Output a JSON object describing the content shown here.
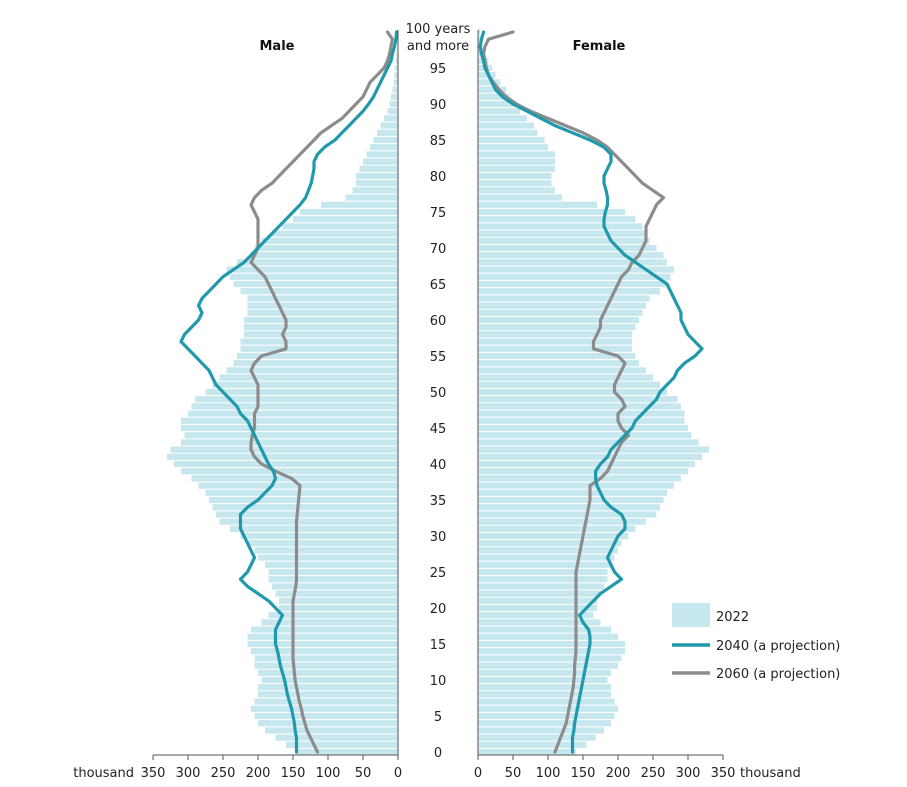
{
  "chart_data": {
    "type": "bar",
    "orientation": "horizontal",
    "layout": "population-pyramid",
    "panels": [
      {
        "name": "Male"
      },
      {
        "name": "Female"
      }
    ],
    "age_label_top": [
      "100 years",
      "and more"
    ],
    "age_ticks": [
      0,
      5,
      10,
      15,
      20,
      25,
      30,
      35,
      40,
      45,
      50,
      55,
      60,
      65,
      70,
      75,
      80,
      85,
      90,
      95
    ],
    "x_ticks": [
      0,
      50,
      100,
      150,
      200,
      250,
      300,
      350
    ],
    "x_unit": "thousand",
    "xlim": [
      0,
      350
    ],
    "ylim": [
      0,
      100
    ],
    "legend": {
      "position": "bottom-right"
    },
    "colors": {
      "bar": "#c7e7ee",
      "line_2040": "#2199ac",
      "line_2060": "#8c8c8c",
      "axis": "#555555"
    },
    "series": [
      {
        "name": "2022",
        "kind": "bar",
        "male": [
          145,
          160,
          175,
          190,
          200,
          205,
          210,
          205,
          200,
          200,
          195,
          200,
          205,
          205,
          210,
          215,
          215,
          210,
          195,
          185,
          170,
          170,
          175,
          180,
          185,
          185,
          190,
          200,
          205,
          215,
          225,
          240,
          255,
          260,
          265,
          270,
          275,
          285,
          295,
          310,
          320,
          330,
          325,
          310,
          305,
          310,
          310,
          300,
          295,
          290,
          275,
          265,
          255,
          245,
          235,
          230,
          225,
          225,
          220,
          220,
          220,
          215,
          215,
          215,
          225,
          235,
          240,
          245,
          230,
          210,
          205,
          195,
          180,
          165,
          150,
          140,
          110,
          75,
          65,
          60,
          60,
          55,
          50,
          45,
          40,
          35,
          30,
          25,
          20,
          15,
          12,
          10,
          8,
          6,
          5,
          4,
          3,
          2,
          1,
          1,
          1
        ],
        "female": [
          140,
          155,
          168,
          180,
          190,
          195,
          200,
          195,
          190,
          190,
          185,
          190,
          200,
          205,
          210,
          210,
          200,
          190,
          175,
          165,
          170,
          170,
          175,
          180,
          185,
          185,
          190,
          195,
          200,
          205,
          215,
          225,
          240,
          255,
          260,
          265,
          270,
          280,
          290,
          300,
          310,
          320,
          330,
          315,
          305,
          300,
          295,
          295,
          290,
          285,
          270,
          260,
          250,
          240,
          230,
          225,
          220,
          220,
          220,
          225,
          230,
          235,
          240,
          245,
          260,
          270,
          275,
          280,
          270,
          265,
          255,
          245,
          240,
          235,
          225,
          210,
          170,
          120,
          110,
          105,
          105,
          110,
          110,
          110,
          100,
          95,
          85,
          80,
          70,
          60,
          55,
          45,
          40,
          32,
          25,
          20,
          15,
          10,
          7,
          5,
          3
        ]
      },
      {
        "name": "2040 (a projection)",
        "kind": "line",
        "male": [
          145,
          145,
          145,
          147,
          148,
          150,
          152,
          155,
          158,
          160,
          162,
          165,
          168,
          170,
          172,
          175,
          175,
          175,
          170,
          165,
          175,
          185,
          200,
          215,
          225,
          215,
          210,
          205,
          210,
          215,
          220,
          225,
          225,
          225,
          215,
          200,
          190,
          180,
          175,
          178,
          185,
          190,
          195,
          200,
          205,
          210,
          215,
          225,
          230,
          240,
          250,
          260,
          265,
          270,
          280,
          290,
          300,
          310,
          305,
          295,
          285,
          280,
          285,
          280,
          270,
          260,
          250,
          235,
          220,
          210,
          200,
          190,
          180,
          170,
          160,
          150,
          140,
          132,
          128,
          124,
          122,
          120,
          120,
          115,
          105,
          90,
          80,
          70,
          60,
          50,
          42,
          35,
          30,
          25,
          20,
          15,
          10,
          8,
          5,
          3,
          2
        ],
        "female": [
          135,
          135,
          135,
          137,
          138,
          140,
          142,
          144,
          146,
          148,
          150,
          152,
          154,
          156,
          158,
          160,
          160,
          158,
          150,
          145,
          155,
          165,
          175,
          190,
          205,
          195,
          190,
          185,
          190,
          195,
          200,
          210,
          210,
          205,
          190,
          180,
          175,
          170,
          168,
          168,
          175,
          185,
          190,
          200,
          210,
          220,
          225,
          235,
          245,
          255,
          260,
          270,
          280,
          285,
          295,
          310,
          320,
          310,
          300,
          295,
          290,
          290,
          285,
          280,
          275,
          270,
          255,
          240,
          225,
          210,
          200,
          190,
          185,
          180,
          180,
          182,
          185,
          185,
          183,
          180,
          180,
          185,
          190,
          190,
          180,
          160,
          135,
          110,
          90,
          70,
          50,
          35,
          25,
          20,
          15,
          10,
          8,
          5,
          3,
          5,
          8
        ]
      },
      {
        "name": "2060 (a projection)",
        "kind": "line",
        "male": [
          115,
          120,
          125,
          130,
          133,
          136,
          138,
          141,
          143,
          145,
          147,
          148,
          149,
          150,
          150,
          150,
          150,
          150,
          150,
          150,
          150,
          150,
          148,
          146,
          145,
          145,
          145,
          145,
          145,
          145,
          145,
          145,
          145,
          144,
          143,
          142,
          141,
          140,
          152,
          175,
          195,
          205,
          210,
          210,
          208,
          205,
          205,
          205,
          200,
          200,
          200,
          200,
          205,
          210,
          205,
          195,
          160,
          160,
          165,
          160,
          160,
          165,
          170,
          175,
          180,
          185,
          190,
          200,
          210,
          205,
          200,
          200,
          200,
          200,
          200,
          205,
          210,
          205,
          195,
          180,
          170,
          160,
          150,
          140,
          130,
          120,
          110,
          95,
          80,
          70,
          60,
          50,
          45,
          40,
          30,
          20,
          15,
          12,
          10,
          8,
          15
        ],
        "female": [
          110,
          114,
          118,
          122,
          126,
          128,
          130,
          132,
          134,
          136,
          137,
          138,
          138,
          139,
          140,
          140,
          140,
          140,
          140,
          140,
          140,
          140,
          140,
          140,
          140,
          140,
          142,
          144,
          146,
          148,
          150,
          152,
          154,
          156,
          158,
          160,
          160,
          160,
          175,
          185,
          190,
          195,
          200,
          205,
          215,
          205,
          200,
          200,
          210,
          205,
          195,
          195,
          200,
          205,
          210,
          200,
          165,
          165,
          170,
          175,
          175,
          180,
          185,
          190,
          195,
          200,
          205,
          215,
          220,
          230,
          235,
          240,
          240,
          240,
          245,
          250,
          255,
          265,
          250,
          235,
          225,
          215,
          205,
          195,
          185,
          170,
          150,
          125,
          100,
          75,
          55,
          40,
          30,
          22,
          15,
          12,
          10,
          8,
          10,
          15,
          50
        ]
      }
    ]
  }
}
